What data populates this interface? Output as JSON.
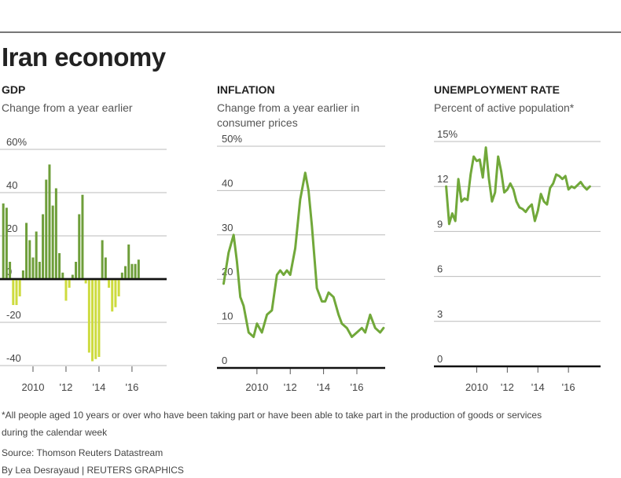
{
  "title": "Iran economy",
  "colors": {
    "positive": "#6e9e3a",
    "negative": "#cddb3e",
    "line": "#71a83a",
    "grid": "#bbbbbb",
    "zero": "#111111"
  },
  "chart_data": [
    {
      "type": "bar",
      "panel_title": "GDP",
      "subtitle": "Change from a year earlier",
      "ylim": [
        -40,
        60
      ],
      "y_ticks": [
        60,
        40,
        20,
        0,
        -20,
        -40
      ],
      "y_tick_labels": [
        "60%",
        "40",
        "20",
        "0",
        "-20",
        "-40"
      ],
      "x_tick_labels": [
        "2010",
        "'12",
        "'14",
        "'16"
      ],
      "x_tick_positions": [
        2010,
        2012,
        2014,
        2016
      ],
      "x_range": [
        2008.0,
        2018.1
      ],
      "bars": [
        {
          "x": 2008.2,
          "y": 35
        },
        {
          "x": 2008.4,
          "y": 33
        },
        {
          "x": 2008.6,
          "y": 8
        },
        {
          "x": 2008.8,
          "y": -12
        },
        {
          "x": 2009.0,
          "y": -12
        },
        {
          "x": 2009.2,
          "y": -8
        },
        {
          "x": 2009.4,
          "y": 4
        },
        {
          "x": 2009.6,
          "y": 26
        },
        {
          "x": 2009.8,
          "y": 18
        },
        {
          "x": 2010.0,
          "y": 10
        },
        {
          "x": 2010.2,
          "y": 22
        },
        {
          "x": 2010.4,
          "y": 8
        },
        {
          "x": 2010.6,
          "y": 30
        },
        {
          "x": 2010.8,
          "y": 46
        },
        {
          "x": 2011.0,
          "y": 53
        },
        {
          "x": 2011.2,
          "y": 34
        },
        {
          "x": 2011.4,
          "y": 42
        },
        {
          "x": 2011.6,
          "y": 12
        },
        {
          "x": 2011.8,
          "y": 3
        },
        {
          "x": 2012.0,
          "y": -10
        },
        {
          "x": 2012.2,
          "y": -4
        },
        {
          "x": 2012.4,
          "y": 2
        },
        {
          "x": 2012.6,
          "y": 8
        },
        {
          "x": 2012.8,
          "y": 30
        },
        {
          "x": 2013.0,
          "y": 39
        },
        {
          "x": 2013.2,
          "y": -2
        },
        {
          "x": 2013.4,
          "y": -34
        },
        {
          "x": 2013.6,
          "y": -38
        },
        {
          "x": 2013.8,
          "y": -37
        },
        {
          "x": 2014.0,
          "y": -36
        },
        {
          "x": 2014.2,
          "y": 18
        },
        {
          "x": 2014.4,
          "y": 10
        },
        {
          "x": 2014.6,
          "y": -4
        },
        {
          "x": 2014.8,
          "y": -15
        },
        {
          "x": 2015.0,
          "y": -13
        },
        {
          "x": 2015.2,
          "y": -8
        },
        {
          "x": 2015.4,
          "y": 3
        },
        {
          "x": 2015.6,
          "y": 6
        },
        {
          "x": 2015.8,
          "y": 16
        },
        {
          "x": 2016.0,
          "y": 7
        },
        {
          "x": 2016.2,
          "y": 7
        },
        {
          "x": 2016.4,
          "y": 9
        }
      ]
    },
    {
      "type": "line",
      "panel_title": "INFLATION",
      "subtitle_lines": [
        "Change from a year earlier in",
        "consumer prices"
      ],
      "ylim": [
        0,
        50
      ],
      "y_ticks": [
        50,
        40,
        30,
        20,
        10,
        0
      ],
      "y_tick_labels": [
        "50%",
        "40",
        "30",
        "20",
        "10",
        "0"
      ],
      "x_tick_labels": [
        "2010",
        "'12",
        "'14",
        "'16"
      ],
      "x_tick_positions": [
        2010,
        2012,
        2014,
        2016
      ],
      "x_range": [
        2007.6,
        2017.7
      ],
      "x": [
        2008.0,
        2008.3,
        2008.6,
        2008.8,
        2009.0,
        2009.2,
        2009.5,
        2009.8,
        2010.0,
        2010.3,
        2010.6,
        2010.9,
        2011.2,
        2011.4,
        2011.6,
        2011.8,
        2012.0,
        2012.3,
        2012.6,
        2012.9,
        2013.1,
        2013.3,
        2013.6,
        2013.9,
        2014.1,
        2014.3,
        2014.6,
        2014.9,
        2015.1,
        2015.4,
        2015.7,
        2016.0,
        2016.3,
        2016.5,
        2016.8,
        2017.1,
        2017.4,
        2017.6
      ],
      "y": [
        19,
        26,
        30,
        24,
        16,
        14,
        8,
        7,
        10,
        8,
        12,
        13,
        21,
        22,
        21,
        22,
        21,
        27,
        38,
        44,
        40,
        32,
        18,
        15,
        15,
        17,
        16,
        12,
        10,
        9,
        7,
        8,
        9,
        8,
        12,
        9,
        8,
        9
      ]
    },
    {
      "type": "line",
      "panel_title": "UNEMPLOYMENT RATE",
      "subtitle": "Percent of active population*",
      "ylim": [
        0,
        15
      ],
      "y_ticks": [
        15,
        12,
        9,
        6,
        3,
        0
      ],
      "y_tick_labels": [
        "15%",
        "12",
        "9",
        "6",
        "3",
        "0"
      ],
      "x_tick_labels": [
        "2010",
        "'12",
        "'14",
        "'16"
      ],
      "x_tick_positions": [
        2010,
        2012,
        2014,
        2016
      ],
      "x_range": [
        2007.2,
        2018.1
      ],
      "x": [
        2008.0,
        2008.2,
        2008.4,
        2008.6,
        2008.8,
        2009.0,
        2009.2,
        2009.4,
        2009.6,
        2009.8,
        2010.0,
        2010.2,
        2010.4,
        2010.6,
        2010.8,
        2011.0,
        2011.2,
        2011.4,
        2011.6,
        2011.8,
        2012.0,
        2012.2,
        2012.4,
        2012.6,
        2012.8,
        2013.0,
        2013.2,
        2013.4,
        2013.6,
        2013.8,
        2014.0,
        2014.2,
        2014.4,
        2014.6,
        2014.8,
        2015.0,
        2015.2,
        2015.4,
        2015.6,
        2015.8,
        2016.0,
        2016.2,
        2016.4,
        2016.6,
        2016.8,
        2017.0,
        2017.2,
        2017.4
      ],
      "y": [
        12.0,
        9.5,
        10.2,
        9.7,
        12.5,
        11.0,
        11.2,
        11.1,
        12.8,
        14.0,
        13.7,
        13.8,
        12.6,
        14.6,
        12.5,
        11.0,
        11.6,
        14.0,
        13.0,
        11.6,
        11.8,
        12.2,
        11.8,
        11.0,
        10.6,
        10.5,
        10.3,
        10.6,
        10.8,
        9.7,
        10.4,
        11.5,
        11.0,
        10.8,
        11.9,
        12.2,
        12.8,
        12.7,
        12.5,
        12.7,
        11.8,
        12.0,
        11.9,
        12.1,
        12.3,
        12.0,
        11.8,
        12.0
      ]
    }
  ],
  "footnote": {
    "line1": "*All people aged 10 years or over who have been taking part or have been able to take part in the production of goods or services",
    "line2": "during the calendar week",
    "source": "Source: Thomson Reuters Datastream",
    "credit": "By Lea Desrayaud | REUTERS GRAPHICS"
  }
}
